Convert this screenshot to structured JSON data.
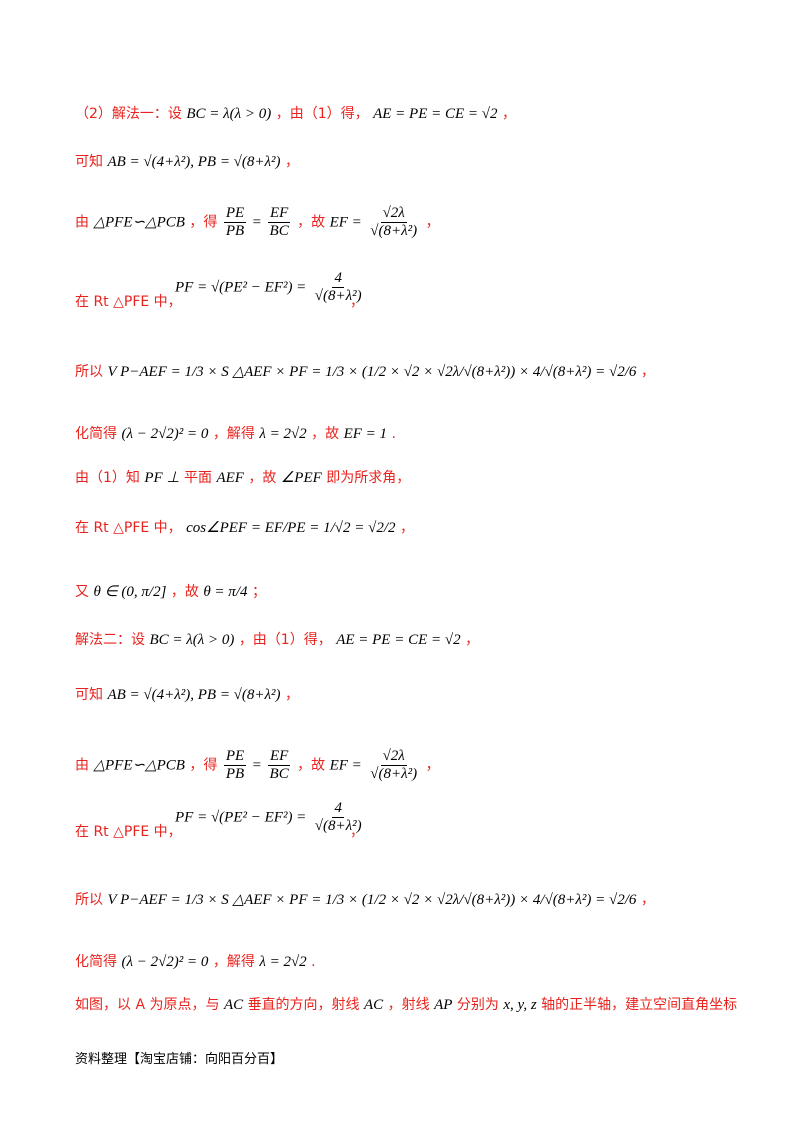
{
  "lines": [
    {
      "text": "（2）解法一：设",
      "math": "BC = λ(λ > 0)",
      "text2": "，由（1）得，",
      "math2": "AE = PE = CE = √2",
      "text3": "，"
    },
    {
      "text": "可知",
      "math": "AB = √(4+λ²), PB = √(8+λ²)",
      "text2": "，"
    },
    {
      "text": "由",
      "math": "△PFE∽△PCB",
      "text2": "，得",
      "frac1n": "PE",
      "frac1d": "PB",
      "eq": "=",
      "frac2n": "EF",
      "frac2d": "BC",
      "text3": "，故",
      "math3": "EF =",
      "frac3n": "√2λ",
      "frac3d": "√(8+λ²)",
      "text4": "，"
    },
    {
      "math": "PF = √(PE² − EF²) =",
      "fracn": "4",
      "fracd": "√(8+λ²)",
      "prefix": "在 Rt △PFE 中，",
      "text2": "，"
    },
    {
      "text": "所以",
      "math": "V P−AEF = 1/3 × S △AEF × PF = 1/3 × (1/2 × √2 × √2λ/√(8+λ²)) × 4/√(8+λ²) = √2/6",
      "text2": "，"
    },
    {
      "text": "化简得",
      "math": "(λ − 2√2)² = 0",
      "text2": "，解得",
      "math2": "λ = 2√2",
      "text3": "，故",
      "math3": "EF = 1",
      "text4": "."
    },
    {
      "text": "由（1）知",
      "math": "PF ⊥",
      "text2": "平面",
      "math2": "AEF",
      "text3": "，故",
      "math3": "∠PEF",
      "text4": "即为所求角，"
    },
    {
      "text": "在 Rt △PFE 中，",
      "math": "cos∠PEF = EF/PE = 1/√2 = √2/2",
      "text2": "，"
    },
    {
      "text": "又",
      "math": "θ ∈ (0, π/2]",
      "text2": "，故",
      "math2": "θ = π/4",
      "text3": "；"
    },
    {
      "text": "解法二：设",
      "math": "BC = λ(λ > 0)",
      "text2": "，由（1）得，",
      "math2": "AE = PE = CE = √2",
      "text3": "，"
    },
    {
      "text": "可知",
      "math": "AB = √(4+λ²), PB = √(8+λ²)",
      "text2": "，"
    },
    {
      "text": "由",
      "math": "△PFE∽△PCB",
      "text2": "，得",
      "text3": "，故"
    },
    {
      "prefix": "在 Rt △PFE 中，",
      "text2": "，"
    },
    {
      "text": "所以",
      "text2": "，"
    },
    {
      "text": "化简得",
      "math": "(λ − 2√2)² = 0",
      "text2": "，解得",
      "math2": "λ = 2√2",
      "text3": "."
    },
    {
      "text": "如图，以 A 为原点，与",
      "math": "AC",
      "text2": "垂直的方向，射线",
      "math2": "AC",
      "text3": "，射线",
      "math3": "AP",
      "text4": "分别为",
      "math4": "x, y, z",
      "text5": "轴的正半轴，建立空间直角坐标"
    }
  ],
  "footer": "资料整理【淘宝店铺：向阳百分百】"
}
